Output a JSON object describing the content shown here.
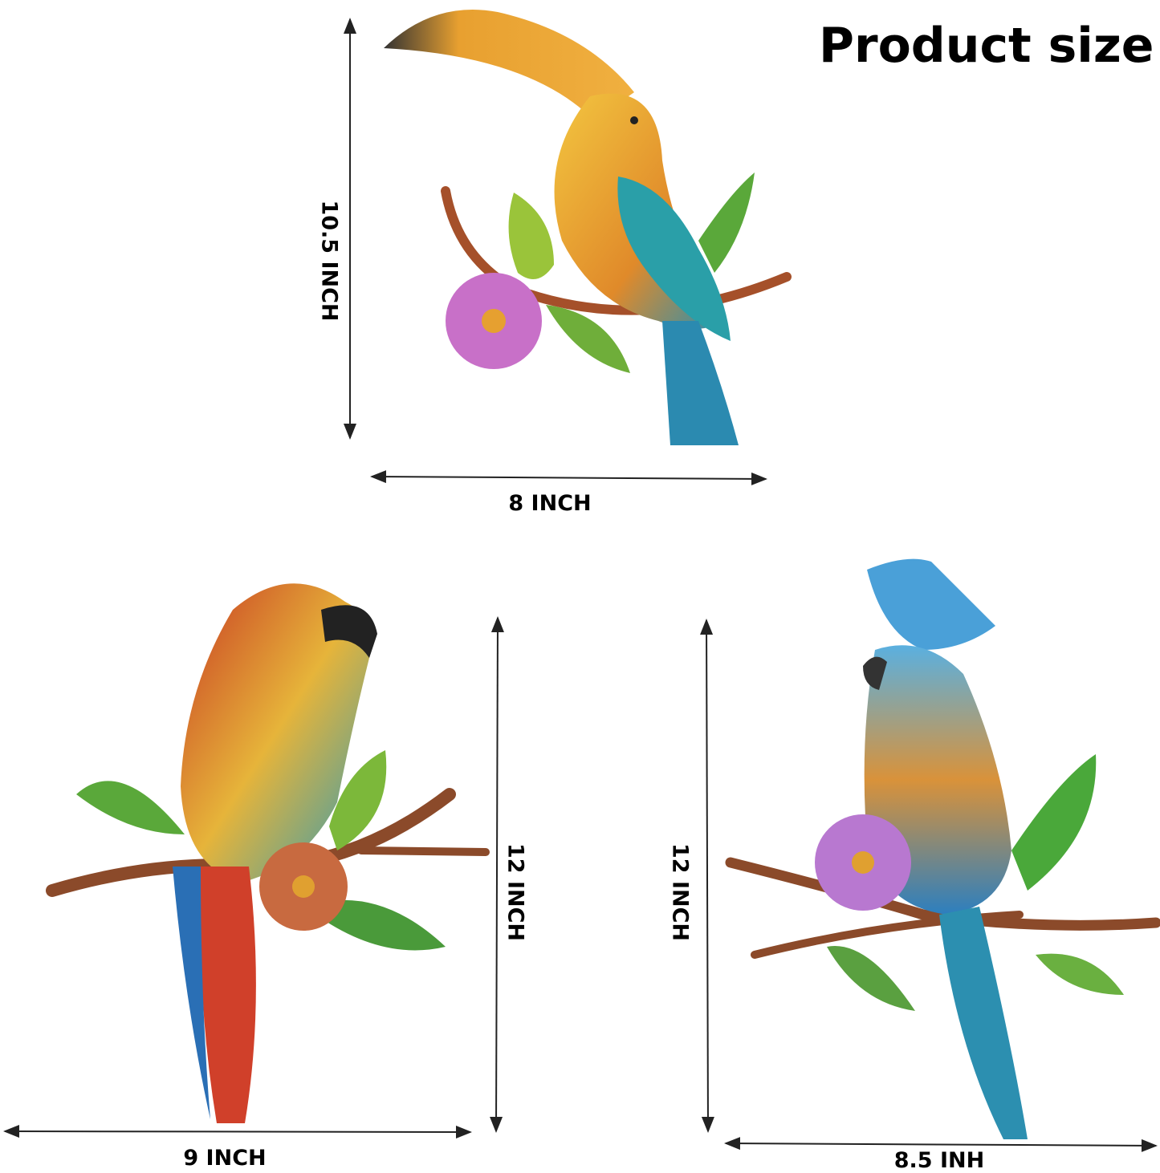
{
  "title": "Product size",
  "items": [
    {
      "name": "toucan",
      "height_label": "10.5 INCH",
      "width_label": "8 INCH"
    },
    {
      "name": "macaw",
      "height_label": "12 INCH",
      "width_label": "9 INCH"
    },
    {
      "name": "cockatoo",
      "height_label": "12 INCH",
      "width_label": "8.5 INH"
    }
  ],
  "colors": {
    "arrow": "#222222",
    "text": "#000000"
  }
}
